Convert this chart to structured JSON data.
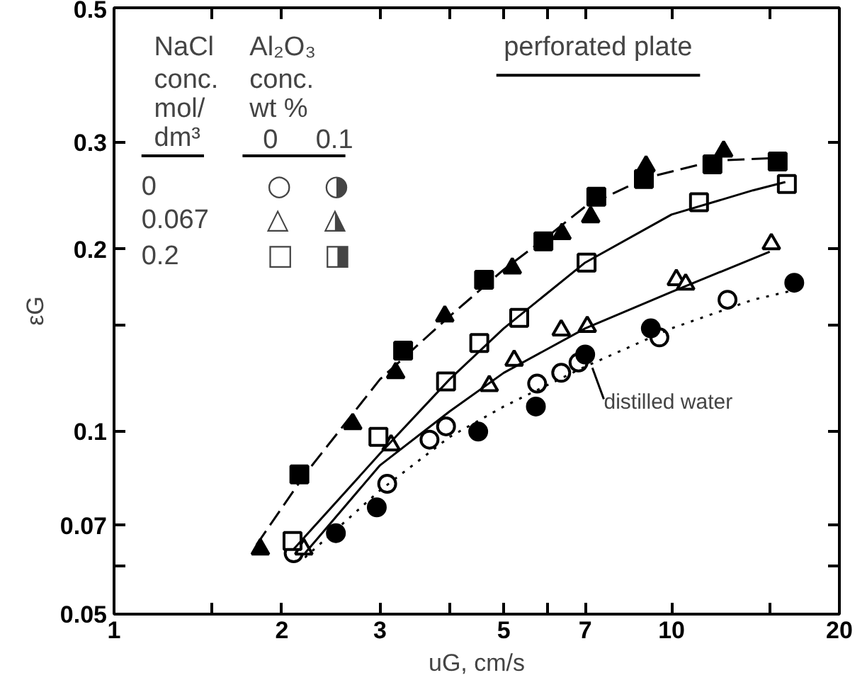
{
  "chart_data": {
    "type": "scatter",
    "xlabel": "uG, cm/s",
    "ylabel": "εG",
    "log": "xy",
    "grid": false,
    "xlim": [
      1,
      20
    ],
    "ylim": [
      0.05,
      0.5
    ],
    "xticks": [
      1,
      {
        "value": 1.5,
        "label": null
      },
      2,
      3,
      {
        "value": 4,
        "label": null
      },
      5,
      {
        "value": 6,
        "label": null
      },
      7,
      10,
      {
        "value": 15,
        "label": null
      },
      20
    ],
    "yticks": [
      0.05,
      {
        "value": 0.06,
        "label": null
      },
      0.07,
      0.1,
      {
        "value": 0.15,
        "label": null
      },
      0.2,
      0.3,
      0.5
    ],
    "annotations": [
      "NaCl",
      "conc.",
      "mol/",
      "dm³",
      "Al₂O₃",
      "conc.",
      "wt %",
      "0",
      "0.1",
      "0",
      "0.067",
      "0.2",
      "○",
      "◑",
      "△",
      "◮",
      "□",
      "◨",
      "perforated plate",
      {
        "text": "distilled water",
        "x": 7,
        "y": 0.13
      }
    ],
    "series": [
      {
        "marker": "circle",
        "color": "#ffffff",
        "x": [
          2.1,
          3.09,
          3.68,
          3.94,
          5.74,
          6.34,
          6.81,
          9.51,
          12.6
        ],
        "values": [
          0.063,
          0.082,
          0.097,
          0.102,
          0.12,
          0.125,
          0.13,
          0.143,
          0.165
        ]
      },
      {
        "marker": "circle",
        "color": "#000000",
        "x": [
          2.5,
          2.96,
          4.5,
          5.71,
          7.0,
          9.18,
          16.6
        ],
        "values": [
          0.068,
          0.075,
          0.1,
          0.11,
          0.134,
          0.148,
          0.176
        ]
      },
      {
        "marker": "triangle",
        "color": "#ffffff",
        "x": [
          2.19,
          3.14,
          4.71,
          5.22,
          6.34,
          7.06,
          10.2,
          10.6,
          15.1
        ],
        "values": [
          0.064,
          0.095,
          0.119,
          0.131,
          0.147,
          0.149,
          0.178,
          0.175,
          0.204
        ]
      },
      {
        "marker": "triangle",
        "color": "#000000",
        "x": [
          1.83,
          2.68,
          3.2,
          3.92,
          5.18,
          6.36,
          7.16,
          9.0,
          12.4
        ],
        "values": [
          0.064,
          0.103,
          0.125,
          0.155,
          0.186,
          0.212,
          0.226,
          0.274,
          0.29
        ]
      },
      {
        "marker": "square",
        "color": "#ffffff",
        "x": [
          2.09,
          2.98,
          3.94,
          4.52,
          5.33,
          7.04,
          11.2,
          16.1
        ],
        "values": [
          0.066,
          0.098,
          0.121,
          0.14,
          0.154,
          0.19,
          0.239,
          0.256
        ]
      },
      {
        "marker": "square",
        "color": "#000000",
        "x": [
          2.15,
          3.3,
          4.61,
          5.89,
          7.33,
          8.92,
          11.84,
          15.5
        ],
        "values": [
          0.085,
          0.136,
          0.178,
          0.206,
          0.244,
          0.261,
          0.276,
          0.279
        ]
      },
      {
        "type": "line",
        "line_style": "dashed",
        "color": "#000000",
        "x": [
          1.8,
          2.2,
          3,
          4,
          5,
          6,
          7,
          9,
          12,
          16
        ],
        "values": [
          0.065,
          0.085,
          0.122,
          0.155,
          0.185,
          0.21,
          0.235,
          0.262,
          0.28,
          0.283
        ]
      },
      {
        "type": "line",
        "line_style": "solid",
        "color": "#000000",
        "x": [
          2.1,
          3,
          4,
          5,
          7,
          10,
          14,
          16
        ],
        "values": [
          0.064,
          0.092,
          0.122,
          0.148,
          0.19,
          0.228,
          0.25,
          0.258
        ]
      },
      {
        "type": "line",
        "line_style": "solid",
        "color": "#000000",
        "x": [
          2.2,
          3,
          4,
          5,
          7,
          10,
          15
        ],
        "values": [
          0.063,
          0.088,
          0.108,
          0.125,
          0.148,
          0.17,
          0.198
        ]
      },
      {
        "type": "line",
        "line_style": "dotted",
        "color": "#000000",
        "x": [
          2.2,
          3,
          4,
          5,
          7,
          10,
          14,
          17
        ],
        "values": [
          0.062,
          0.08,
          0.098,
          0.11,
          0.128,
          0.148,
          0.165,
          0.172
        ]
      }
    ]
  }
}
